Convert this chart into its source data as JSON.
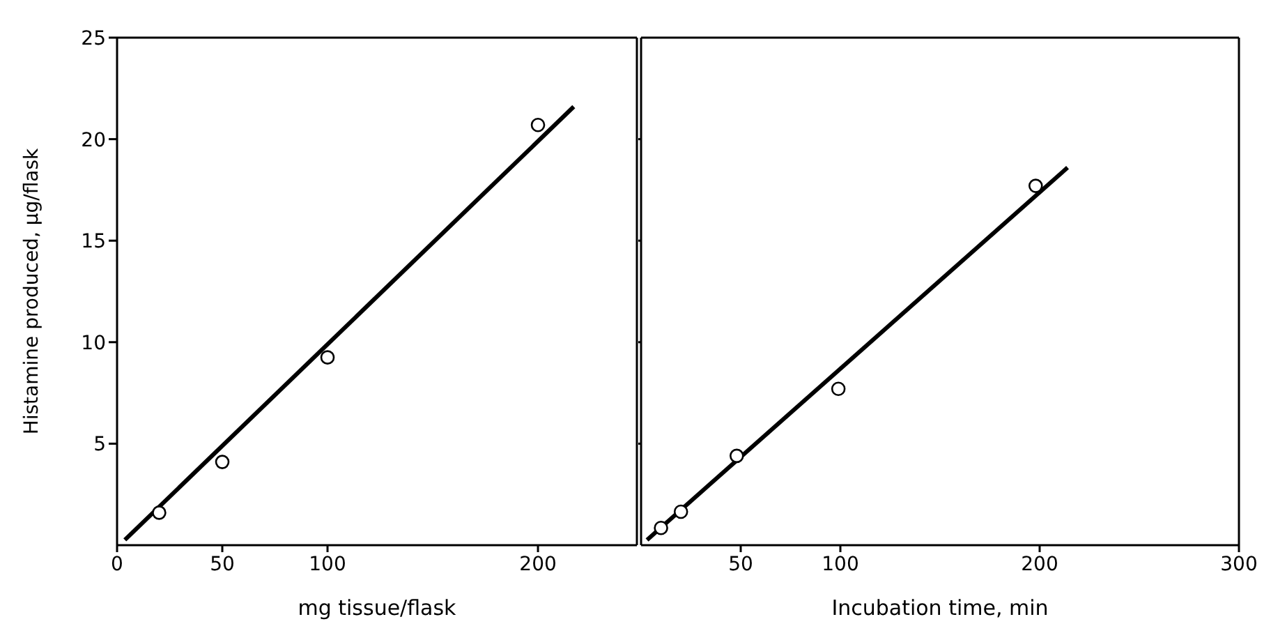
{
  "chart_data": [
    {
      "type": "scatter",
      "xlabel": "mg tissue/flask",
      "ylabel": "Histamine produced, μg/flask",
      "xlim": [
        0,
        247
      ],
      "xticks": [
        0,
        50,
        100,
        200
      ],
      "ylim": [
        0,
        25
      ],
      "yticks": [
        5,
        10,
        15,
        20,
        25
      ],
      "legend": false,
      "series": [
        {
          "color": "#000000",
          "marker": "circle",
          "x": [
            20,
            50,
            100,
            200
          ],
          "values": [
            1.6,
            4.1,
            9.25,
            20.7
          ]
        },
        {
          "type": "line",
          "color": "#000000",
          "line_style": "solid",
          "x": [
            3.7,
            217
          ],
          "values": [
            0.26,
            21.6
          ]
        }
      ]
    },
    {
      "type": "scatter",
      "xlabel": "Incubation time, min",
      "xlim": [
        0,
        300
      ],
      "xticks": [
        50,
        100,
        200,
        300
      ],
      "ylim": [
        0,
        25
      ],
      "yticks": [
        5,
        10,
        15,
        20
      ],
      "tick_labels": "x",
      "legend": false,
      "series": [
        {
          "color": "#000000",
          "marker": "circle",
          "x": [
            10,
            20,
            48,
            99,
            198
          ],
          "values": [
            0.85,
            1.65,
            4.4,
            7.7,
            17.7
          ]
        },
        {
          "type": "line",
          "color": "#000000",
          "line_style": "solid",
          "x": [
            3,
            214
          ],
          "values": [
            0.26,
            18.6
          ]
        }
      ]
    }
  ]
}
